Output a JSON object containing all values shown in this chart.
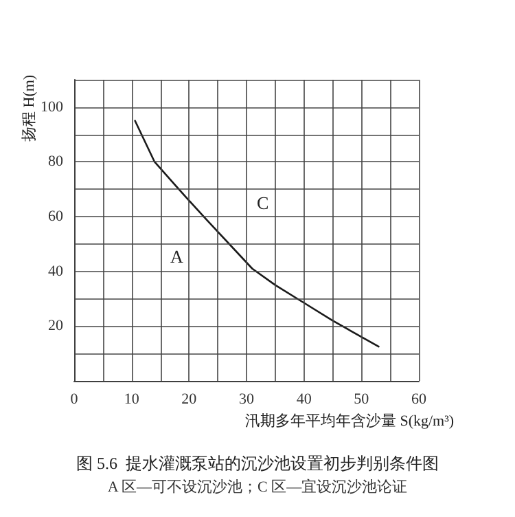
{
  "chart_data": {
    "type": "line",
    "title": "图 5.6  提水灌溉泵站的沉沙池设置初步判别条件图",
    "subtitle": "A 区—可不设沉沙池；C 区—宜设沉沙池论证",
    "xlabel": "汛期多年平均年含沙量 S(kg/m³)",
    "ylabel": "扬程 H(m)",
    "series": [
      {
        "color": "#1a1a1a",
        "x": [
          10.6,
          14,
          19.5,
          23,
          31,
          35,
          40,
          45,
          53
        ],
        "values": [
          95,
          80,
          67,
          59,
          41,
          35,
          28.5,
          22,
          12.5
        ]
      }
    ],
    "annotations": [
      "A",
      "C"
    ],
    "xlim": [
      0,
      60
    ],
    "ylim": [
      0,
      110
    ],
    "xticks": [
      0,
      {
        "value": 5,
        "label": null
      },
      10,
      {
        "value": 15,
        "label": null
      },
      20,
      {
        "value": 25,
        "label": null
      },
      30,
      {
        "value": 35,
        "label": null
      },
      40,
      {
        "value": 45,
        "label": null
      },
      50,
      {
        "value": 55,
        "label": null
      },
      60
    ],
    "yticks": [
      {
        "value": 0,
        "label": null
      },
      {
        "value": 10,
        "label": null
      },
      20,
      {
        "value": 30,
        "label": null
      },
      40,
      {
        "value": 50,
        "label": null
      },
      60,
      {
        "value": 70,
        "label": null
      },
      80,
      {
        "value": 90,
        "label": null
      },
      100,
      {
        "value": 110,
        "label": null
      }
    ],
    "grid": true,
    "marker": "none",
    "line_style": "solid"
  }
}
